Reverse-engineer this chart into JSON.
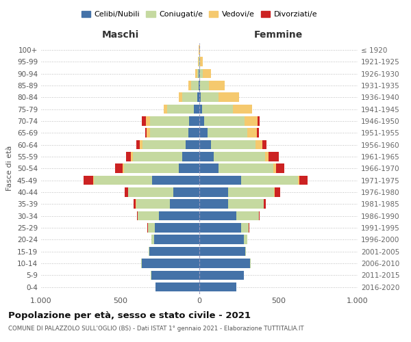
{
  "age_groups": [
    "0-4",
    "5-9",
    "10-14",
    "15-19",
    "20-24",
    "25-29",
    "30-34",
    "35-39",
    "40-44",
    "45-49",
    "50-54",
    "55-59",
    "60-64",
    "65-69",
    "70-74",
    "75-79",
    "80-84",
    "85-89",
    "90-94",
    "95-99",
    "100+"
  ],
  "birth_years": [
    "2016-2020",
    "2011-2015",
    "2006-2010",
    "2001-2005",
    "1996-2000",
    "1991-1995",
    "1986-1990",
    "1981-1985",
    "1976-1980",
    "1971-1975",
    "1966-1970",
    "1961-1965",
    "1956-1960",
    "1951-1955",
    "1946-1950",
    "1941-1945",
    "1936-1940",
    "1931-1935",
    "1926-1930",
    "1921-1925",
    "≤ 1920"
  ],
  "colors": {
    "celibi": "#4472a8",
    "coniugati": "#c5d9a0",
    "vedovi": "#f5c96e",
    "divorziati": "#cc2222"
  },
  "maschi_celibi": [
    275,
    305,
    365,
    315,
    285,
    280,
    255,
    185,
    165,
    300,
    130,
    110,
    85,
    70,
    65,
    35,
    12,
    5,
    3,
    1,
    1
  ],
  "maschi_coniugati": [
    1,
    1,
    2,
    4,
    18,
    45,
    135,
    215,
    285,
    365,
    345,
    310,
    275,
    240,
    245,
    170,
    95,
    45,
    12,
    3,
    1
  ],
  "maschi_vedovi": [
    0,
    0,
    0,
    0,
    1,
    0,
    1,
    1,
    2,
    5,
    9,
    12,
    18,
    22,
    27,
    22,
    22,
    18,
    10,
    3,
    1
  ],
  "maschi_divorziati": [
    0,
    0,
    0,
    0,
    0,
    5,
    5,
    16,
    22,
    62,
    48,
    32,
    22,
    12,
    28,
    0,
    0,
    0,
    0,
    0,
    0
  ],
  "femmine_celibi": [
    232,
    282,
    322,
    292,
    282,
    262,
    232,
    182,
    182,
    262,
    122,
    92,
    72,
    52,
    30,
    18,
    8,
    4,
    2,
    1,
    1
  ],
  "femmine_coniugati": [
    1,
    1,
    2,
    4,
    22,
    50,
    145,
    225,
    290,
    360,
    345,
    325,
    285,
    250,
    255,
    195,
    115,
    55,
    18,
    4,
    1
  ],
  "femmine_vedovi": [
    0,
    0,
    0,
    0,
    0,
    0,
    1,
    2,
    5,
    9,
    16,
    22,
    42,
    62,
    82,
    120,
    130,
    100,
    52,
    15,
    3
  ],
  "femmine_divorziati": [
    0,
    0,
    0,
    0,
    0,
    5,
    5,
    12,
    32,
    52,
    52,
    62,
    26,
    12,
    12,
    0,
    0,
    0,
    0,
    0,
    0
  ],
  "title": "Popolazione per età, sesso e stato civile - 2021",
  "subtitle": "COMUNE DI PALAZZOLO SULL'OGLIO (BS) - Dati ISTAT 1° gennaio 2021 - Elaborazione TUTTITALIA.IT",
  "xlabel_maschi": "Maschi",
  "xlabel_femmine": "Femmine",
  "ylabel": "Fasce di età",
  "xlim": 1000,
  "legend_labels": [
    "Celibi/Nubili",
    "Coniugati/e",
    "Vedovi/e",
    "Divorziati/e"
  ]
}
